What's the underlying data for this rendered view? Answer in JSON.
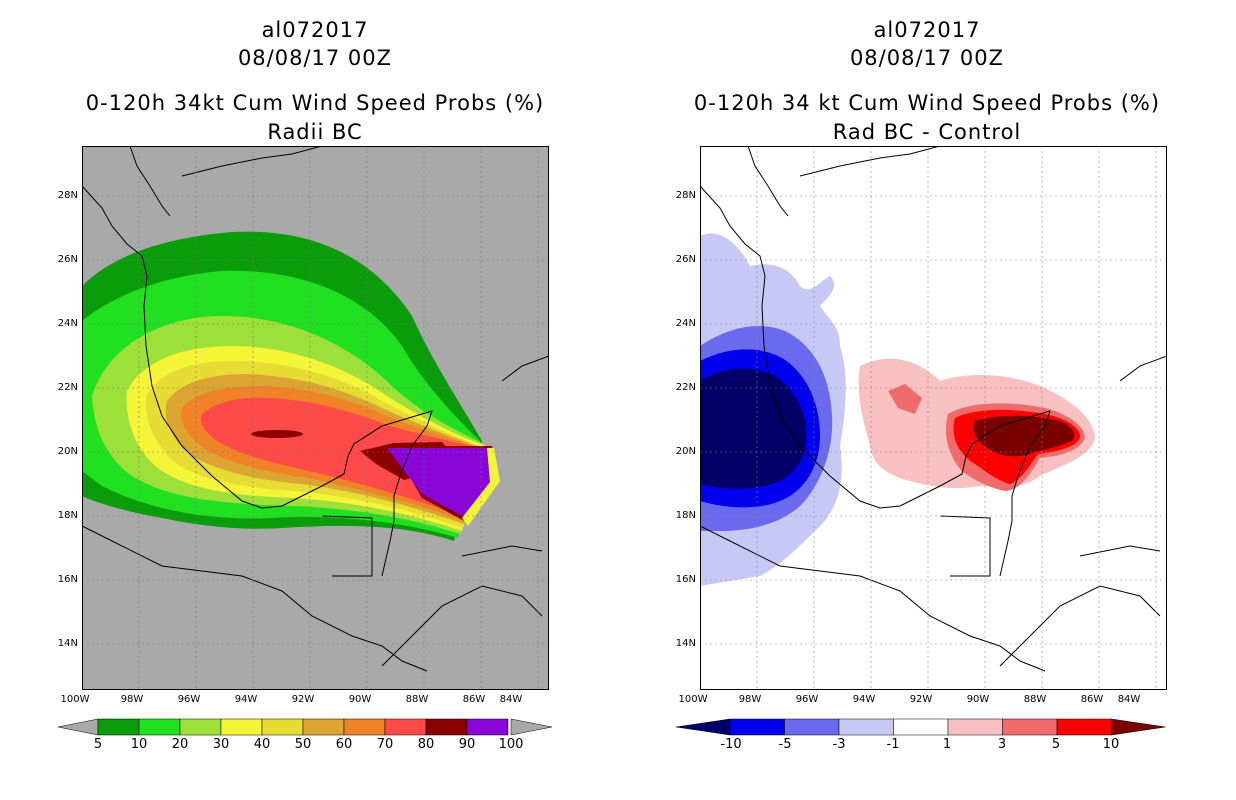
{
  "left_panel": {
    "storm_id": "al072017",
    "date": "08/08/17 00Z",
    "title": "0-120h 34kt Cum Wind Speed Probs (%)",
    "subtitle": "Radii BC",
    "lat_labels": [
      "28N",
      "26N",
      "24N",
      "22N",
      "20N",
      "18N",
      "16N",
      "14N"
    ],
    "lon_labels": [
      "100W",
      "98W",
      "96W",
      "94W",
      "92W",
      "90W",
      "88W",
      "86W",
      "84W"
    ],
    "colorbar": {
      "labels": [
        "5",
        "10",
        "20",
        "30",
        "40",
        "50",
        "60",
        "70",
        "80",
        "90",
        "100"
      ],
      "colors": [
        "#0a9c0a",
        "#21e021",
        "#9ee03a",
        "#f5f538",
        "#e6dc34",
        "#dca432",
        "#f08228",
        "#ff4a4a",
        "#8c0000",
        "#8a06d8"
      ]
    }
  },
  "right_panel": {
    "storm_id": "al072017",
    "date": "08/08/17 00Z",
    "title": "0-120h 34 kt Cum Wind Speed Probs (%)",
    "subtitle": "Rad BC - Control",
    "lat_labels": [
      "28N",
      "26N",
      "24N",
      "22N",
      "20N",
      "18N",
      "16N",
      "14N"
    ],
    "lon_labels": [
      "100W",
      "98W",
      "96W",
      "94W",
      "92W",
      "90W",
      "88W",
      "86W",
      "84W"
    ],
    "colorbar": {
      "labels": [
        "-10",
        "-5",
        "-3",
        "-1",
        "1",
        "3",
        "5",
        "10"
      ],
      "colors": [
        "#000066",
        "#0000ee",
        "#6a6aee",
        "#c8c8f6",
        "#ffffff",
        "#f8c0c0",
        "#f06c6c",
        "#ff0000",
        "#7a0000"
      ]
    }
  }
}
